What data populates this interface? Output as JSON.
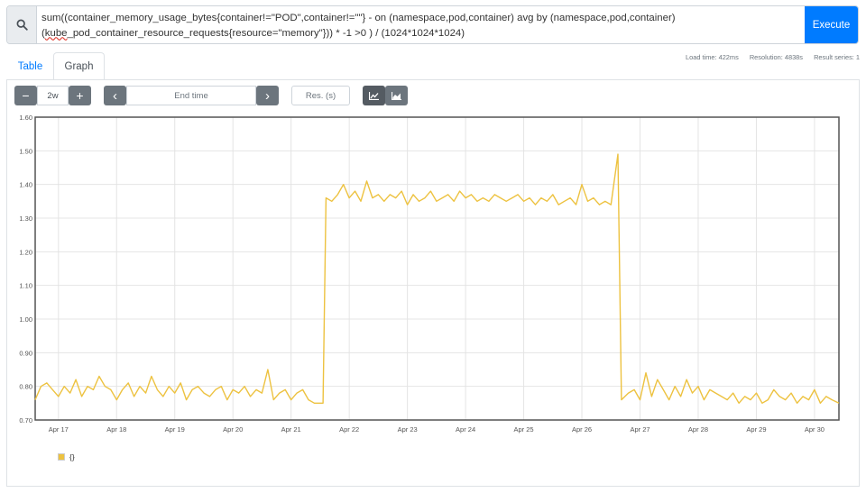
{
  "query": {
    "line1": "sum((container_memory_usage_bytes{container!=\"POD\",container!=\"\"} - on (namespace,pod,container) avg by (namespace,pod,container)",
    "line2_prefix": "(",
    "line2_err": "kube",
    "line2_rest": "_pod_container_resource_requests{resource=\"memory\"})) * -1 >0 ) / (1024*1024*1024)",
    "search_icon": "search-icon"
  },
  "execute_label": "Execute",
  "tabs": {
    "table": "Table",
    "graph": "Graph"
  },
  "stats": {
    "load": "Load time: 422ms",
    "resolution": "Resolution: 4838s",
    "series": "Result series: 1"
  },
  "controls": {
    "minus": "−",
    "range": "2w",
    "plus": "+",
    "prev": "‹",
    "end_placeholder": "End time",
    "next": "›",
    "res_placeholder": "Res. (s)",
    "line_icon": "line-chart-icon",
    "stacked_icon": "stacked-area-chart-icon"
  },
  "legend": {
    "label": "{}",
    "color": "#edc240"
  },
  "chart_data": {
    "type": "line",
    "ylim": [
      0.7,
      1.6
    ],
    "yticks": [
      "0.70",
      "0.80",
      "0.90",
      "1.00",
      "1.10",
      "1.20",
      "1.30",
      "1.40",
      "1.50",
      "1.60"
    ],
    "xticks": [
      "Apr 17",
      "Apr 18",
      "Apr 19",
      "Apr 20",
      "Apr 21",
      "Apr 22",
      "Apr 23",
      "Apr 24",
      "Apr 25",
      "Apr 26",
      "Apr 27",
      "Apr 28",
      "Apr 29",
      "Apr 30"
    ],
    "x_days_range": [
      16.6,
      30.42
    ],
    "grid": true,
    "series": [
      {
        "name": "{}",
        "color": "#edc240",
        "x": [
          16.6,
          16.7,
          16.8,
          16.9,
          17.0,
          17.1,
          17.2,
          17.3,
          17.4,
          17.5,
          17.6,
          17.7,
          17.8,
          17.9,
          18.0,
          18.1,
          18.2,
          18.3,
          18.4,
          18.5,
          18.6,
          18.7,
          18.8,
          18.9,
          19.0,
          19.1,
          19.2,
          19.3,
          19.4,
          19.5,
          19.6,
          19.7,
          19.8,
          19.9,
          20.0,
          20.1,
          20.2,
          20.3,
          20.4,
          20.5,
          20.6,
          20.7,
          20.8,
          20.9,
          21.0,
          21.1,
          21.2,
          21.3,
          21.4,
          21.55,
          21.6,
          21.7,
          21.8,
          21.9,
          22.0,
          22.1,
          22.2,
          22.3,
          22.4,
          22.5,
          22.6,
          22.7,
          22.8,
          22.9,
          23.0,
          23.1,
          23.2,
          23.3,
          23.4,
          23.5,
          23.6,
          23.7,
          23.8,
          23.9,
          24.0,
          24.1,
          24.2,
          24.3,
          24.4,
          24.5,
          24.6,
          24.7,
          24.8,
          24.9,
          25.0,
          25.1,
          25.2,
          25.3,
          25.4,
          25.5,
          25.6,
          25.7,
          25.8,
          25.9,
          26.0,
          26.1,
          26.2,
          26.3,
          26.4,
          26.5,
          26.62,
          26.68,
          26.8,
          26.9,
          27.0,
          27.1,
          27.2,
          27.3,
          27.4,
          27.5,
          27.6,
          27.7,
          27.8,
          27.9,
          28.0,
          28.1,
          28.2,
          28.3,
          28.4,
          28.5,
          28.6,
          28.7,
          28.8,
          28.9,
          29.0,
          29.1,
          29.2,
          29.3,
          29.4,
          29.5,
          29.6,
          29.7,
          29.8,
          29.9,
          30.0,
          30.1,
          30.2,
          30.3,
          30.42
        ],
        "values": [
          0.76,
          0.8,
          0.81,
          0.79,
          0.77,
          0.8,
          0.78,
          0.82,
          0.77,
          0.8,
          0.79,
          0.83,
          0.8,
          0.79,
          0.76,
          0.79,
          0.81,
          0.77,
          0.8,
          0.78,
          0.83,
          0.79,
          0.77,
          0.8,
          0.78,
          0.81,
          0.76,
          0.79,
          0.8,
          0.78,
          0.77,
          0.79,
          0.8,
          0.76,
          0.79,
          0.78,
          0.8,
          0.77,
          0.79,
          0.78,
          0.85,
          0.76,
          0.78,
          0.79,
          0.76,
          0.78,
          0.79,
          0.76,
          0.75,
          0.75,
          1.36,
          1.35,
          1.37,
          1.4,
          1.36,
          1.38,
          1.35,
          1.41,
          1.36,
          1.37,
          1.35,
          1.37,
          1.36,
          1.38,
          1.34,
          1.37,
          1.35,
          1.36,
          1.38,
          1.35,
          1.36,
          1.37,
          1.35,
          1.38,
          1.36,
          1.37,
          1.35,
          1.36,
          1.35,
          1.37,
          1.36,
          1.35,
          1.36,
          1.37,
          1.35,
          1.36,
          1.34,
          1.36,
          1.35,
          1.37,
          1.34,
          1.35,
          1.36,
          1.34,
          1.4,
          1.35,
          1.36,
          1.34,
          1.35,
          1.34,
          1.49,
          0.76,
          0.78,
          0.79,
          0.76,
          0.84,
          0.77,
          0.82,
          0.79,
          0.76,
          0.8,
          0.77,
          0.82,
          0.78,
          0.8,
          0.76,
          0.79,
          0.78,
          0.77,
          0.76,
          0.78,
          0.75,
          0.77,
          0.76,
          0.78,
          0.75,
          0.76,
          0.79,
          0.77,
          0.76,
          0.78,
          0.75,
          0.77,
          0.76,
          0.79,
          0.75,
          0.77,
          0.76,
          0.75
        ]
      }
    ]
  }
}
